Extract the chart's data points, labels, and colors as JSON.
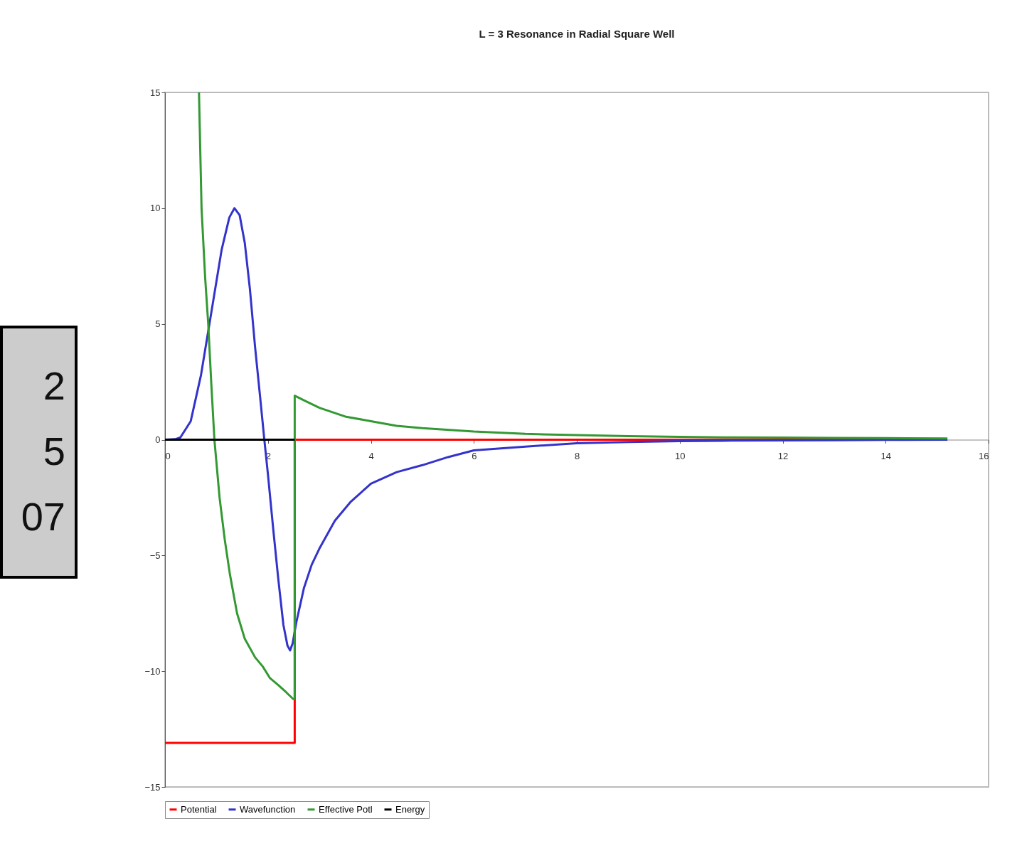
{
  "chart_data": {
    "type": "line",
    "title": "L = 3 Resonance in Radial Square Well",
    "xlim": [
      0,
      16
    ],
    "xticks": [
      0,
      2,
      4,
      6,
      8,
      10,
      12,
      14,
      16
    ],
    "ylim": [
      -15,
      15
    ],
    "yticks": [
      -15,
      -10,
      -5,
      0,
      5,
      10,
      15
    ],
    "grid": false,
    "legend": "bottom",
    "marker": "none",
    "line_style": "solid",
    "annotations": [
      "2",
      "5",
      "07"
    ],
    "series": [
      {
        "name": "Potential",
        "color": "#ff0000",
        "x": [
          0,
          2.52,
          2.52,
          15.2
        ],
        "values": [
          -13.1,
          -13.1,
          0,
          0
        ]
      },
      {
        "name": "Wavefunction",
        "color": "#3333cc",
        "x": [
          0,
          0.2,
          0.3,
          0.5,
          0.7,
          0.9,
          1.1,
          1.25,
          1.35,
          1.45,
          1.55,
          1.65,
          1.75,
          1.85,
          1.93,
          2.0,
          2.1,
          2.2,
          2.3,
          2.38,
          2.43,
          2.48,
          2.55,
          2.7,
          2.85,
          3.0,
          3.3,
          3.6,
          4.0,
          4.5,
          5.0,
          5.5,
          6.0,
          7.0,
          8.0,
          9.0,
          10.0,
          11.0,
          12.0,
          13.0,
          14.0,
          15.2
        ],
        "values": [
          0,
          0.02,
          0.1,
          0.8,
          2.8,
          5.5,
          8.2,
          9.6,
          10.0,
          9.7,
          8.5,
          6.5,
          4.0,
          1.8,
          0,
          -1.5,
          -3.8,
          -6.0,
          -8.0,
          -8.9,
          -9.1,
          -8.8,
          -7.9,
          -6.4,
          -5.4,
          -4.7,
          -3.5,
          -2.7,
          -1.9,
          -1.4,
          -1.1,
          -0.75,
          -0.46,
          -0.3,
          -0.15,
          -0.1,
          -0.06,
          -0.04,
          -0.03,
          -0.02,
          -0.01,
          0
        ]
      },
      {
        "name": "Effective Potl",
        "color": "#339933",
        "x": [
          0.66,
          0.71,
          0.78,
          0.84,
          0.9,
          0.96,
          1.06,
          1.16,
          1.26,
          1.4,
          1.55,
          1.75,
          1.9,
          2.04,
          2.2,
          2.35,
          2.49,
          2.52,
          2.52,
          2.7,
          3.0,
          3.5,
          4.0,
          4.5,
          5.0,
          6.0,
          7.0,
          8.0,
          9.0,
          10.0,
          11.0,
          12.0,
          13.0,
          14.0,
          15.2
        ],
        "values": [
          15,
          10,
          7.0,
          5.0,
          2.4,
          0,
          -2.5,
          -4.3,
          -5.8,
          -7.5,
          -8.6,
          -9.4,
          -9.8,
          -10.3,
          -10.6,
          -10.9,
          -11.2,
          -11.2,
          1.9,
          1.7,
          1.38,
          1.0,
          0.8,
          0.6,
          0.5,
          0.35,
          0.25,
          0.2,
          0.15,
          0.12,
          0.1,
          0.09,
          0.08,
          0.07,
          0.05
        ]
      },
      {
        "name": "Energy",
        "color": "#000000",
        "x": [
          0,
          2.52
        ],
        "values": [
          0,
          0
        ]
      }
    ]
  }
}
